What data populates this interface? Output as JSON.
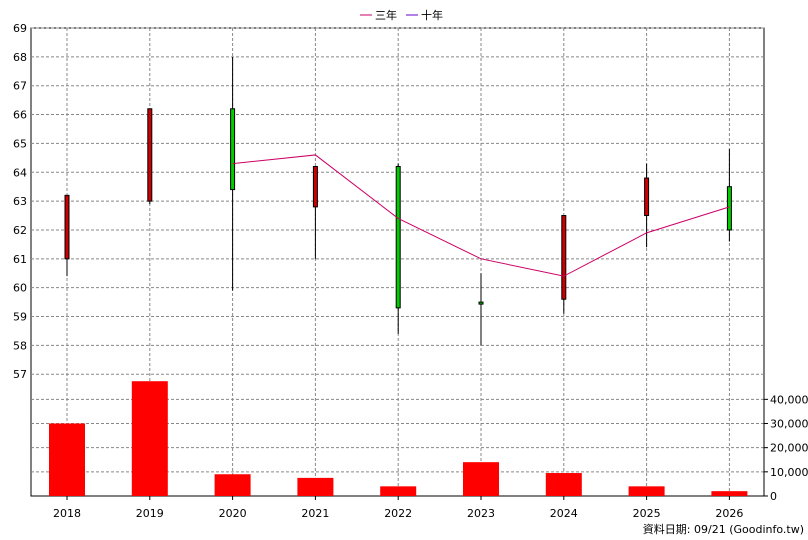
{
  "chart_data": {
    "type": "candlestick+bar",
    "legend": {
      "placement": "top-center",
      "items": [
        {
          "name": "三年",
          "color": "#cc0066"
        },
        {
          "name": "十年",
          "color": "#6600cc"
        }
      ]
    },
    "categories": [
      "2018",
      "2019",
      "2020",
      "2021",
      "2022",
      "2023",
      "2024",
      "2025",
      "2026"
    ],
    "price_panel": {
      "ylim": [
        56.8,
        69
      ],
      "yticks": [
        "57",
        "58",
        "59",
        "60",
        "61",
        "62",
        "63",
        "64",
        "65",
        "66",
        "67",
        "68",
        "69"
      ],
      "candles": [
        {
          "x": "2018",
          "open": 61.0,
          "close": 63.2,
          "high": 63.2,
          "low": 60.4,
          "color": "#cc0000"
        },
        {
          "x": "2019",
          "open": 63.0,
          "close": 66.2,
          "high": 66.2,
          "low": 62.9,
          "color": "#cc0000"
        },
        {
          "x": "2020",
          "open": 66.2,
          "close": 63.4,
          "high": 68.0,
          "low": 59.9,
          "color": "#00cc00"
        },
        {
          "x": "2021",
          "open": 62.8,
          "close": 64.2,
          "high": 64.2,
          "low": 61.0,
          "color": "#cc0000"
        },
        {
          "x": "2022",
          "open": 64.2,
          "close": 59.3,
          "high": 64.3,
          "low": 58.4,
          "color": "#00cc00"
        },
        {
          "x": "2023",
          "open": 59.5,
          "close": 59.5,
          "high": 60.5,
          "low": 58.0,
          "color": "#00cc00"
        },
        {
          "x": "2024",
          "open": 59.6,
          "close": 62.5,
          "high": 62.5,
          "low": 59.1,
          "color": "#cc0000"
        },
        {
          "x": "2025",
          "open": 62.5,
          "close": 63.8,
          "high": 64.3,
          "low": 61.4,
          "color": "#cc0000"
        },
        {
          "x": "2026",
          "open": 63.5,
          "close": 62.0,
          "high": 64.8,
          "low": 61.6,
          "color": "#00cc00"
        }
      ],
      "line_series": [
        {
          "name": "三年",
          "color": "#cc0066",
          "x": [
            "2020",
            "2021",
            "2022",
            "2023",
            "2024",
            "2025",
            "2026"
          ],
          "values": [
            64.3,
            64.6,
            62.4,
            61.0,
            60.4,
            61.9,
            62.8
          ]
        }
      ]
    },
    "volume_panel": {
      "ylim": [
        0,
        48000
      ],
      "yticks": [
        "0",
        "10,000",
        "20,000",
        "30,000",
        "40,000"
      ],
      "color": "#ff0000",
      "values": [
        30000,
        47500,
        9000,
        7500,
        4000,
        14000,
        9500,
        4000,
        2000
      ]
    },
    "grid": true
  },
  "footer_note": "資料日期: 09/21 (Goodinfo.tw)"
}
